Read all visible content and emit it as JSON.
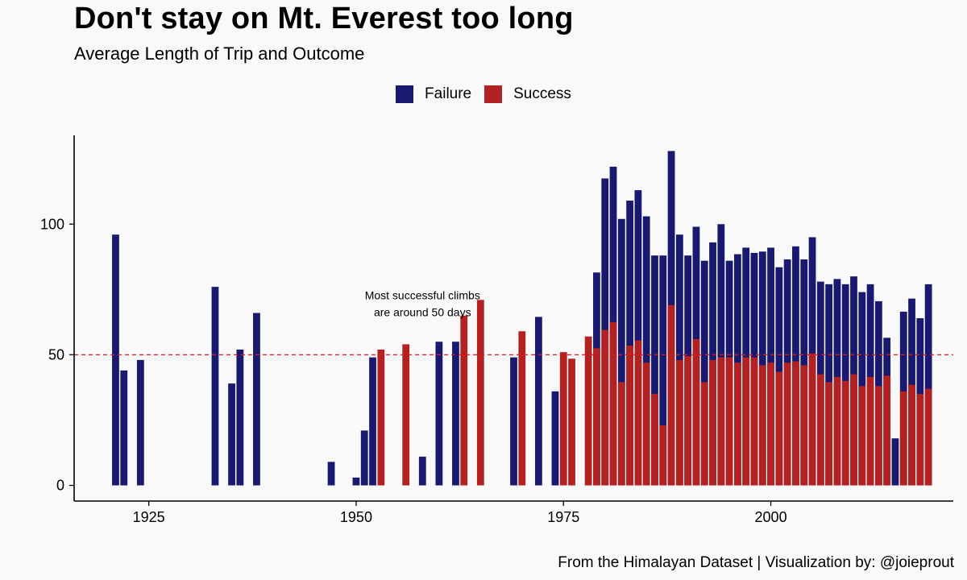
{
  "header": {
    "title": "Don't stay on Mt. Everest too long",
    "subtitle": "Average Length of Trip and Outcome"
  },
  "legend": {
    "items": [
      {
        "label": "Failure",
        "color": "#191970"
      },
      {
        "label": "Success",
        "color": "#b22222"
      }
    ]
  },
  "caption": "From the Himalayan Dataset | Visualization by: @joieprout",
  "chart_data": {
    "type": "bar",
    "title": "Don't stay on Mt. Everest too long",
    "subtitle": "Average Length of Trip and Outcome",
    "xlabel": "",
    "ylabel": "",
    "xlim": [
      1916,
      2022
    ],
    "ylim": [
      -6,
      134
    ],
    "x_ticks": [
      1925,
      1950,
      1975,
      2000
    ],
    "y_ticks": [
      0,
      50,
      100
    ],
    "grid": false,
    "legend_position": "top",
    "reference_line": {
      "y": 50,
      "style": "dashed",
      "color": "#e31a1c"
    },
    "annotation": {
      "lines": [
        "Most successful climbs",
        "are around 50 days"
      ],
      "x": 1958,
      "y": 70
    },
    "series": [
      {
        "name": "Failure",
        "color": "#191970",
        "points": [
          [
            1921,
            96
          ],
          [
            1922,
            44
          ],
          [
            1924,
            48
          ],
          [
            1933,
            76
          ],
          [
            1935,
            39
          ],
          [
            1936,
            52
          ],
          [
            1938,
            66
          ],
          [
            1947,
            9
          ],
          [
            1950,
            3
          ],
          [
            1951,
            21
          ],
          [
            1952,
            49
          ],
          [
            1958,
            11
          ],
          [
            1960,
            55
          ],
          [
            1962,
            55
          ],
          [
            1969,
            49
          ],
          [
            1972,
            64.5
          ],
          [
            1974,
            36
          ],
          [
            1979,
            81.5
          ],
          [
            1980,
            117.5
          ],
          [
            1981,
            122
          ],
          [
            1982,
            102
          ],
          [
            1983,
            109
          ],
          [
            1984,
            113
          ],
          [
            1985,
            103
          ],
          [
            1986,
            88
          ],
          [
            1987,
            88
          ],
          [
            1988,
            128
          ],
          [
            1989,
            96
          ],
          [
            1990,
            88
          ],
          [
            1991,
            99
          ],
          [
            1992,
            86
          ],
          [
            1993,
            93
          ],
          [
            1994,
            100
          ],
          [
            1995,
            86
          ],
          [
            1996,
            88.5
          ],
          [
            1997,
            91
          ],
          [
            1998,
            89
          ],
          [
            1999,
            89.5
          ],
          [
            2000,
            91
          ],
          [
            2001,
            83.5
          ],
          [
            2002,
            86.5
          ],
          [
            2003,
            91.5
          ],
          [
            2004,
            86.5
          ],
          [
            2005,
            95
          ],
          [
            2006,
            78
          ],
          [
            2007,
            77
          ],
          [
            2008,
            79
          ],
          [
            2009,
            77
          ],
          [
            2010,
            80
          ],
          [
            2011,
            74
          ],
          [
            2012,
            77
          ],
          [
            2013,
            70.5
          ],
          [
            2014,
            56.5
          ],
          [
            2015,
            18
          ],
          [
            2016,
            66.5
          ],
          [
            2017,
            71.5
          ],
          [
            2018,
            64
          ],
          [
            2019,
            77
          ]
        ]
      },
      {
        "name": "Success",
        "color": "#b22222",
        "points": [
          [
            1953,
            52
          ],
          [
            1956,
            54
          ],
          [
            1963,
            65
          ],
          [
            1965,
            71
          ],
          [
            1970,
            59
          ],
          [
            1975,
            51
          ],
          [
            1976,
            48.5
          ],
          [
            1978,
            57
          ],
          [
            1979,
            52.5
          ],
          [
            1980,
            59.5
          ],
          [
            1981,
            62.5
          ],
          [
            1982,
            39.5
          ],
          [
            1983,
            53.5
          ],
          [
            1984,
            55.5
          ],
          [
            1985,
            47
          ],
          [
            1986,
            35
          ],
          [
            1987,
            23
          ],
          [
            1988,
            69
          ],
          [
            1989,
            48
          ],
          [
            1990,
            49.5
          ],
          [
            1991,
            56
          ],
          [
            1992,
            39.5
          ],
          [
            1993,
            48
          ],
          [
            1994,
            49
          ],
          [
            1995,
            49
          ],
          [
            1996,
            47
          ],
          [
            1997,
            49
          ],
          [
            1998,
            49
          ],
          [
            1999,
            46
          ],
          [
            2000,
            47
          ],
          [
            2001,
            43.5
          ],
          [
            2002,
            47
          ],
          [
            2003,
            47.5
          ],
          [
            2004,
            46
          ],
          [
            2005,
            50.5
          ],
          [
            2006,
            42.5
          ],
          [
            2007,
            39.5
          ],
          [
            2008,
            41.5
          ],
          [
            2009,
            40
          ],
          [
            2010,
            42.5
          ],
          [
            2011,
            38
          ],
          [
            2012,
            41.5
          ],
          [
            2013,
            38
          ],
          [
            2014,
            42
          ],
          [
            2016,
            36
          ],
          [
            2017,
            38.5
          ],
          [
            2018,
            35
          ],
          [
            2019,
            37
          ]
        ]
      }
    ]
  }
}
